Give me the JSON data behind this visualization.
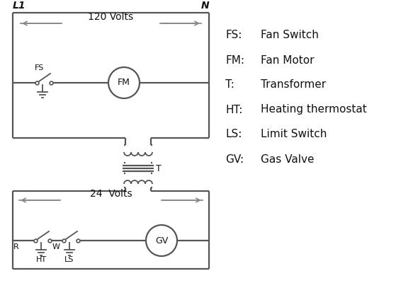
{
  "bg_color": "#ffffff",
  "line_color": "#555555",
  "arrow_color": "#888888",
  "text_color": "#111111",
  "legend_labels": [
    [
      "FS:",
      "Fan Switch"
    ],
    [
      "FM:",
      "Fan Motor"
    ],
    [
      "T:",
      "Transformer"
    ],
    [
      "HT:",
      "Heating thermostat"
    ],
    [
      "LS:",
      "Limit Switch"
    ],
    [
      "GV:",
      "Gas Valve"
    ]
  ]
}
